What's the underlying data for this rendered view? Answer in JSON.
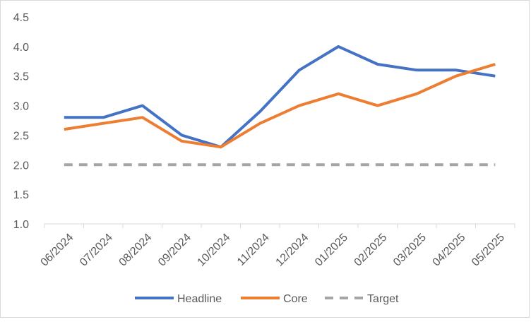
{
  "chart_data": {
    "type": "line",
    "title": "",
    "xlabel": "",
    "ylabel": "",
    "categories": [
      "06/2024",
      "07/2024",
      "08/2024",
      "09/2024",
      "10/2024",
      "11/2024",
      "12/2024",
      "01/2025",
      "02/2025",
      "03/2025",
      "04/2025",
      "05/2025"
    ],
    "ylim": [
      1.0,
      4.5
    ],
    "yticks": [
      "1.0",
      "1.5",
      "2.0",
      "2.5",
      "3.0",
      "3.5",
      "4.0",
      "4.5"
    ],
    "grid": false,
    "legend_position": "bottom",
    "series": [
      {
        "name": "Headline",
        "color": "#4472c4",
        "dash": "solid",
        "values": [
          2.8,
          2.8,
          3.0,
          2.5,
          2.3,
          2.9,
          3.6,
          4.0,
          3.7,
          3.6,
          3.6,
          3.5
        ]
      },
      {
        "name": "Core",
        "color": "#ed7d31",
        "dash": "solid",
        "values": [
          2.6,
          2.7,
          2.8,
          2.4,
          2.3,
          2.7,
          3.0,
          3.2,
          3.0,
          3.2,
          3.5,
          3.7
        ]
      },
      {
        "name": "Target",
        "color": "#a5a5a5",
        "dash": "dashed",
        "values": [
          2.0,
          2.0,
          2.0,
          2.0,
          2.0,
          2.0,
          2.0,
          2.0,
          2.0,
          2.0,
          2.0,
          2.0
        ]
      }
    ]
  }
}
